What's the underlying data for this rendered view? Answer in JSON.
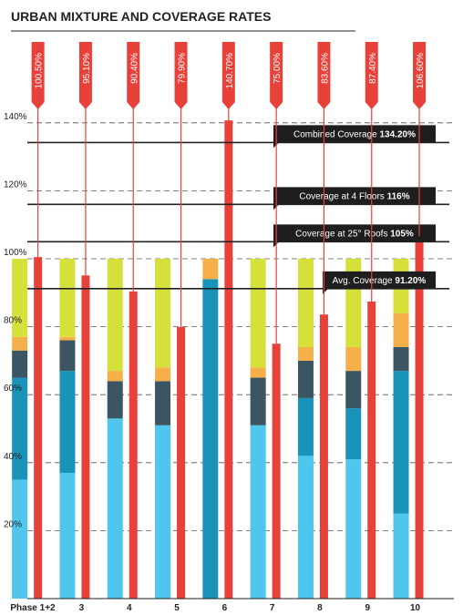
{
  "chart_data": {
    "type": "bar",
    "title": "URBAN MIXTURE AND COVERAGE RATES",
    "categories": [
      "Phase 1+2",
      "3",
      "4",
      "5",
      "6",
      "7",
      "8",
      "9",
      "10"
    ],
    "yticks": [
      {
        "value": 20,
        "label": "20%"
      },
      {
        "value": 40,
        "label": "40%"
      },
      {
        "value": 60,
        "label": "60%"
      },
      {
        "value": 80,
        "label": "80%"
      },
      {
        "value": 100,
        "label": "100%"
      },
      {
        "value": 120,
        "label": "120%"
      },
      {
        "value": 140,
        "label": "140%"
      }
    ],
    "ylim": [
      0,
      150
    ],
    "stacked_mixture": {
      "colors": [
        "#4fc6ee",
        "#1a93bb",
        "#3b5563",
        "#f5b04a",
        "#d6e03a"
      ],
      "series": [
        {
          "values": [
            35,
            37,
            53,
            51,
            0,
            51,
            42,
            41,
            25
          ]
        },
        {
          "values": [
            30,
            30,
            0,
            0,
            94,
            0,
            17,
            15,
            42
          ]
        },
        {
          "values": [
            8,
            9,
            11,
            13,
            0,
            14,
            11,
            11,
            7
          ]
        },
        {
          "values": [
            4,
            1,
            3,
            4,
            6,
            3,
            4,
            7,
            10
          ]
        },
        {
          "values": [
            23,
            23,
            33,
            32,
            0,
            32,
            26,
            26,
            16
          ]
        }
      ]
    },
    "coverage_series": {
      "color": "#e8413a",
      "values": [
        100.5,
        95.1,
        90.4,
        79.9,
        140.7,
        75.0,
        83.6,
        87.4,
        106.6
      ],
      "labels": [
        "100.50%",
        "95.10%",
        "90.40%",
        "79.90%",
        "140.70%",
        "75.00%",
        "83.60%",
        "87.40%",
        "106.60%"
      ]
    },
    "reference_lines": [
      {
        "value": 134.2,
        "label": "Combined Coverage",
        "value_label": "134.20%"
      },
      {
        "value": 116,
        "label": "Coverage at 4 Floors",
        "value_label": "116%"
      },
      {
        "value": 105,
        "label": "Coverage at 25° Roofs",
        "value_label": "105%"
      },
      {
        "value": 91.2,
        "label": "Avg. Coverage",
        "value_label": "91.20%"
      }
    ],
    "grid": true
  }
}
